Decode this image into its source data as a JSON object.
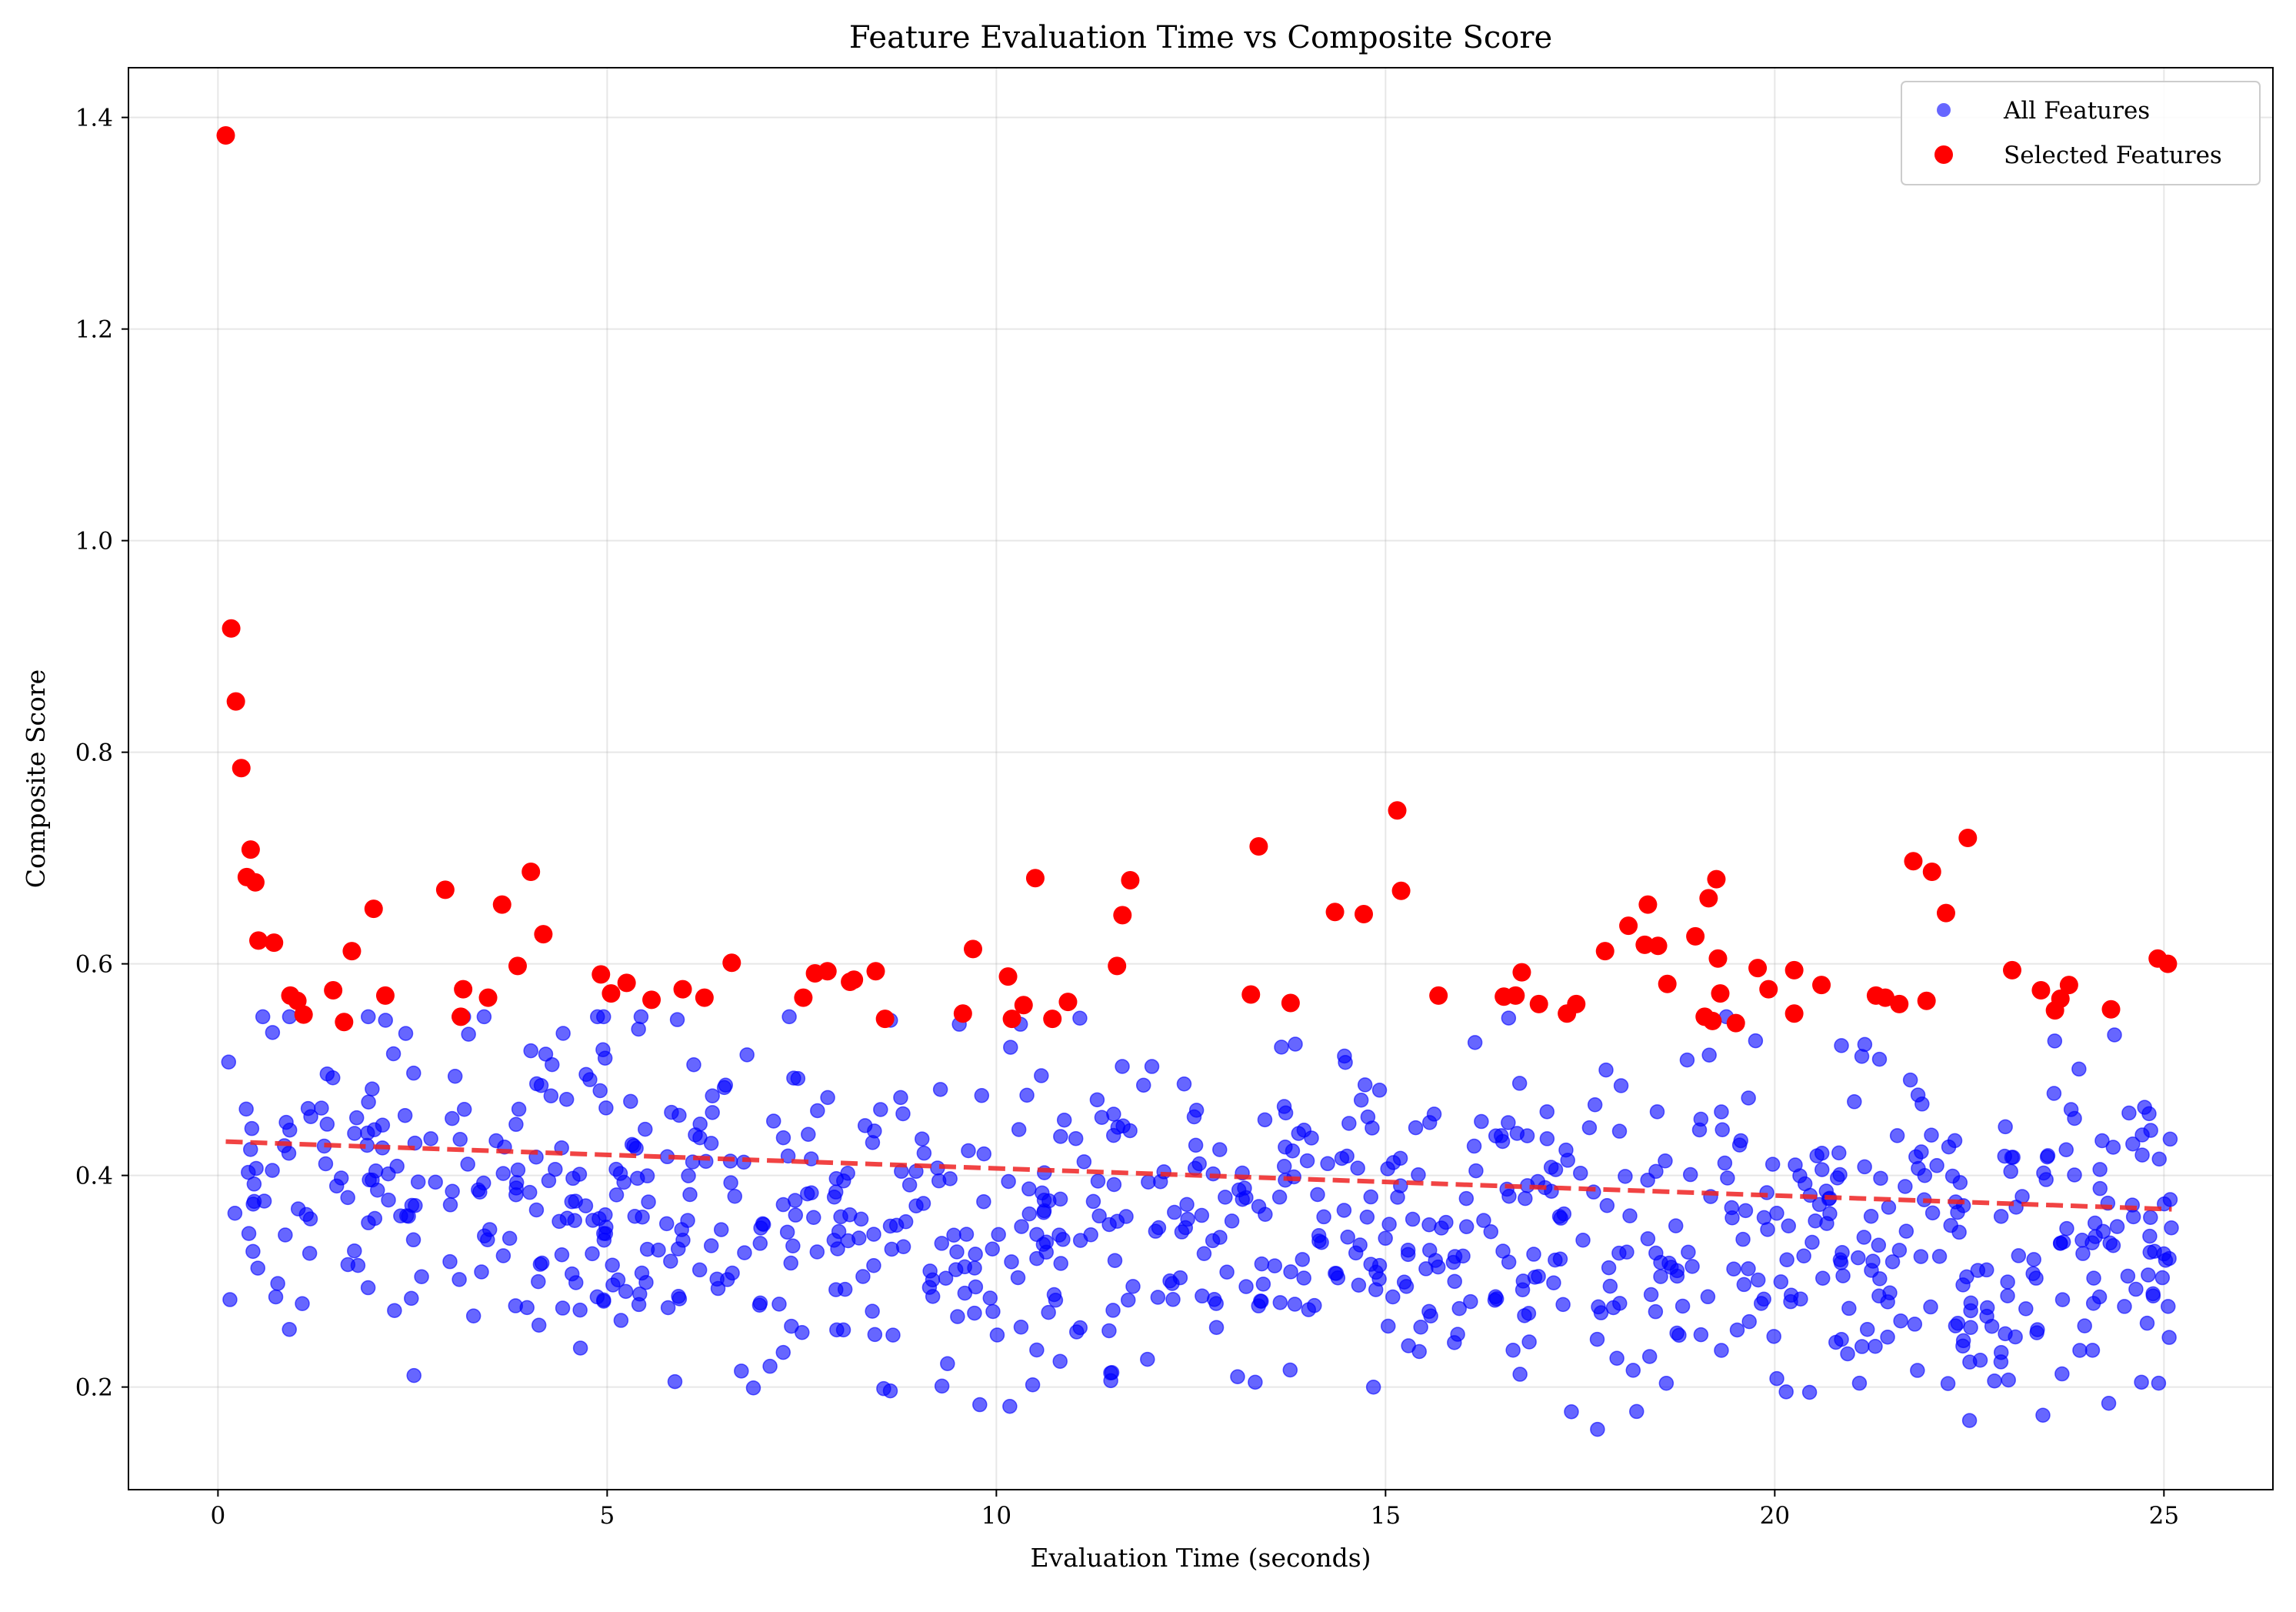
{
  "chart_data": {
    "type": "scatter",
    "title": "Feature Evaluation Time vs Composite Score",
    "xlabel": "Evaluation Time (seconds)",
    "ylabel": "Composite Score",
    "xlim": [
      -1.15,
      26.4
    ],
    "ylim": [
      0.103,
      1.447
    ],
    "xticks": [
      0,
      5,
      10,
      15,
      20,
      25
    ],
    "yticks": [
      0.2,
      0.4,
      0.6,
      0.8,
      1.0,
      1.2,
      1.4
    ],
    "xtick_labels": [
      "0",
      "5",
      "10",
      "15",
      "20",
      "25"
    ],
    "ytick_labels": [
      "0.2",
      "0.4",
      "0.6",
      "0.8",
      "1.0",
      "1.2",
      "1.4"
    ],
    "grid": true,
    "legend_position": "top-right",
    "series": [
      {
        "name": "All Features",
        "color": "#0000ff",
        "marker": "circle",
        "count": 900,
        "x_range": [
          0.1,
          25.1
        ],
        "y_range": [
          0.16,
          0.55
        ]
      },
      {
        "name": "Selected Features",
        "color": "#ff0000",
        "marker": "circle",
        "points": [
          [
            0.1,
            1.383
          ],
          [
            0.17,
            0.917
          ],
          [
            0.23,
            0.848
          ],
          [
            0.3,
            0.785
          ],
          [
            0.37,
            0.682
          ],
          [
            0.42,
            0.708
          ],
          [
            0.48,
            0.677
          ],
          [
            0.52,
            0.622
          ],
          [
            0.72,
            0.62
          ],
          [
            0.93,
            0.57
          ],
          [
            1.02,
            0.565
          ],
          [
            1.1,
            0.552
          ],
          [
            1.48,
            0.575
          ],
          [
            1.62,
            0.545
          ],
          [
            1.72,
            0.612
          ],
          [
            2.0,
            0.652
          ],
          [
            2.15,
            0.57
          ],
          [
            2.92,
            0.67
          ],
          [
            3.12,
            0.55
          ],
          [
            3.15,
            0.576
          ],
          [
            3.47,
            0.568
          ],
          [
            3.65,
            0.656
          ],
          [
            3.85,
            0.598
          ],
          [
            4.02,
            0.687
          ],
          [
            4.18,
            0.628
          ],
          [
            4.92,
            0.59
          ],
          [
            5.05,
            0.572
          ],
          [
            5.25,
            0.582
          ],
          [
            5.57,
            0.566
          ],
          [
            5.97,
            0.576
          ],
          [
            6.25,
            0.568
          ],
          [
            6.6,
            0.601
          ],
          [
            7.52,
            0.568
          ],
          [
            7.67,
            0.591
          ],
          [
            7.83,
            0.593
          ],
          [
            8.12,
            0.583
          ],
          [
            8.17,
            0.585
          ],
          [
            8.45,
            0.593
          ],
          [
            8.57,
            0.548
          ],
          [
            9.57,
            0.553
          ],
          [
            9.7,
            0.614
          ],
          [
            10.15,
            0.588
          ],
          [
            10.2,
            0.548
          ],
          [
            10.35,
            0.561
          ],
          [
            10.5,
            0.681
          ],
          [
            10.72,
            0.548
          ],
          [
            10.92,
            0.564
          ],
          [
            11.55,
            0.598
          ],
          [
            11.62,
            0.646
          ],
          [
            11.72,
            0.679
          ],
          [
            13.27,
            0.571
          ],
          [
            13.37,
            0.711
          ],
          [
            13.78,
            0.563
          ],
          [
            14.35,
            0.649
          ],
          [
            14.72,
            0.647
          ],
          [
            15.15,
            0.745
          ],
          [
            15.2,
            0.669
          ],
          [
            15.68,
            0.57
          ],
          [
            16.52,
            0.569
          ],
          [
            16.67,
            0.57
          ],
          [
            16.75,
            0.592
          ],
          [
            16.97,
            0.562
          ],
          [
            17.33,
            0.553
          ],
          [
            17.45,
            0.562
          ],
          [
            17.82,
            0.612
          ],
          [
            18.12,
            0.636
          ],
          [
            18.33,
            0.618
          ],
          [
            18.37,
            0.656
          ],
          [
            18.5,
            0.617
          ],
          [
            18.62,
            0.581
          ],
          [
            18.98,
            0.626
          ],
          [
            19.1,
            0.55
          ],
          [
            19.15,
            0.662
          ],
          [
            19.2,
            0.546
          ],
          [
            19.25,
            0.68
          ],
          [
            19.27,
            0.605
          ],
          [
            19.3,
            0.572
          ],
          [
            19.5,
            0.544
          ],
          [
            19.78,
            0.596
          ],
          [
            19.92,
            0.576
          ],
          [
            20.25,
            0.594
          ],
          [
            20.25,
            0.553
          ],
          [
            20.6,
            0.58
          ],
          [
            21.3,
            0.57
          ],
          [
            21.42,
            0.568
          ],
          [
            21.6,
            0.562
          ],
          [
            21.78,
            0.697
          ],
          [
            21.95,
            0.565
          ],
          [
            22.02,
            0.687
          ],
          [
            22.2,
            0.648
          ],
          [
            22.48,
            0.719
          ],
          [
            23.05,
            0.594
          ],
          [
            23.42,
            0.575
          ],
          [
            23.6,
            0.556
          ],
          [
            23.67,
            0.567
          ],
          [
            23.78,
            0.58
          ],
          [
            24.32,
            0.557
          ],
          [
            24.92,
            0.605
          ],
          [
            25.05,
            0.6
          ]
        ]
      },
      {
        "name": "",
        "type": "trend-line",
        "color": "#ee2222",
        "style": "dashed",
        "points": [
          [
            0.1,
            0.432
          ],
          [
            25.1,
            0.368
          ]
        ]
      }
    ]
  }
}
